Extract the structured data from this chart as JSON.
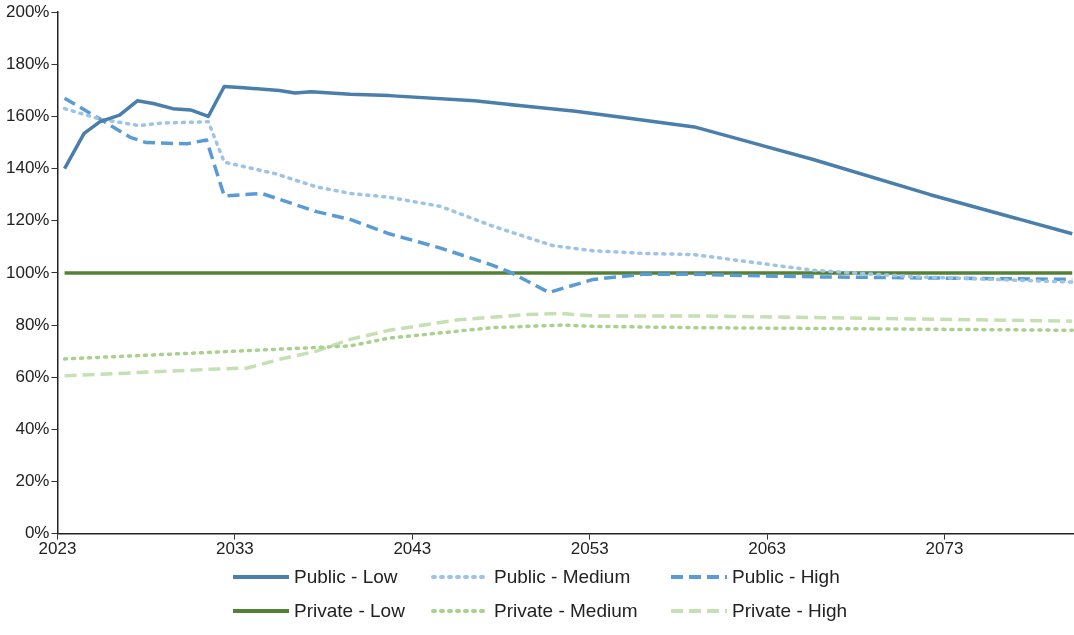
{
  "chart_data": {
    "type": "line",
    "xlim": [
      2023,
      2080.3
    ],
    "xticks": [
      2023,
      2033,
      2043,
      2053,
      2063,
      2073
    ],
    "ylim": [
      0,
      200
    ],
    "yticks": [
      {
        "value": 0,
        "label": "0%"
      },
      {
        "value": 20,
        "label": "20%"
      },
      {
        "value": 40,
        "label": "40%"
      },
      {
        "value": 60,
        "label": "60%"
      },
      {
        "value": 80,
        "label": "80%"
      },
      {
        "value": 100,
        "label": "100%"
      },
      {
        "value": 120,
        "label": "120%"
      },
      {
        "value": 140,
        "label": "140%"
      },
      {
        "value": 160,
        "label": "160%"
      },
      {
        "value": 180,
        "label": "180%"
      },
      {
        "value": 200,
        "label": "200%"
      }
    ],
    "grid": false,
    "legend": "bottom",
    "marker": "none",
    "series": [
      {
        "name": "Public - Low",
        "color": "#4a7eab",
        "line_style": "solid",
        "x": [
          2023.4,
          2024.5,
          2025.4,
          2026.5,
          2027.5,
          2028.4,
          2029.5,
          2030.5,
          2031.5,
          2032.4,
          2033.5,
          2035.5,
          2036.4,
          2037.3,
          2039.5,
          2041.7,
          2046.5,
          2049.3,
          2052.2,
          2055,
          2058.9,
          2065.6,
          2072.2,
          2080.2
        ],
        "values": [
          140,
          153.5,
          158,
          160.5,
          166,
          165,
          163,
          162.5,
          160,
          171.5,
          171,
          170,
          169,
          169.5,
          168.5,
          168,
          166,
          164,
          162,
          159.5,
          156,
          143.5,
          130,
          115
        ]
      },
      {
        "name": "Public - Medium",
        "color": "#9dc3e6",
        "line_style": "dotted",
        "x": [
          2023.4,
          2025.4,
          2027.6,
          2028.9,
          2031.5,
          2032.4,
          2035.3,
          2037.6,
          2039.5,
          2041.7,
          2044.6,
          2047.5,
          2050.9,
          2053.2,
          2056,
          2058.9,
          2061.7,
          2065.6,
          2071.3,
          2080.2
        ],
        "values": [
          163,
          159,
          156.5,
          157.5,
          158,
          142.5,
          138,
          133,
          130.5,
          129,
          125.5,
          118,
          110.5,
          108.5,
          107.5,
          107,
          104.5,
          101,
          98.5,
          96.5
        ]
      },
      {
        "name": "Public - High",
        "color": "#5b9bd5",
        "line_style": "dashed",
        "x": [
          2023.4,
          2025.4,
          2027.1,
          2028,
          2030.3,
          2031.4,
          2032.4,
          2034.5,
          2037.6,
          2039.5,
          2041.7,
          2044.6,
          2047.5,
          2048.6,
          2050.7,
          2053.2,
          2056,
          2058.9,
          2061.7,
          2065.6,
          2080.2
        ],
        "values": [
          167,
          159,
          152,
          150,
          149.5,
          151,
          129.5,
          130.5,
          123.5,
          120.5,
          115,
          109.5,
          103,
          100,
          92.5,
          97.5,
          99.5,
          99.5,
          99,
          98.5,
          97.5
        ]
      },
      {
        "name": "Private - Low",
        "color": "#548235",
        "line_style": "solid",
        "x": [
          2023.4,
          2080.2
        ],
        "values": [
          100,
          100
        ]
      },
      {
        "name": "Private - Medium",
        "color": "#a9d18e",
        "line_style": "dotted",
        "x": [
          2023.4,
          2031.5,
          2039.5,
          2041.7,
          2047.5,
          2051.5,
          2053.2,
          2058.9,
          2080.2
        ],
        "values": [
          67,
          69.5,
          72,
          75,
          79,
          80,
          79.5,
          79,
          78
        ]
      },
      {
        "name": "Private - High",
        "color": "#c5e0b4",
        "line_style": "dashed",
        "x": [
          2023.4,
          2031.5,
          2033.7,
          2035.6,
          2037.6,
          2039.5,
          2041.7,
          2045.6,
          2049.4,
          2051.3,
          2053.2,
          2058.9,
          2080.2
        ],
        "values": [
          60.5,
          63,
          63.5,
          67,
          70,
          74.5,
          78,
          82,
          84,
          84.5,
          83.5,
          83.5,
          81.5
        ]
      }
    ]
  }
}
